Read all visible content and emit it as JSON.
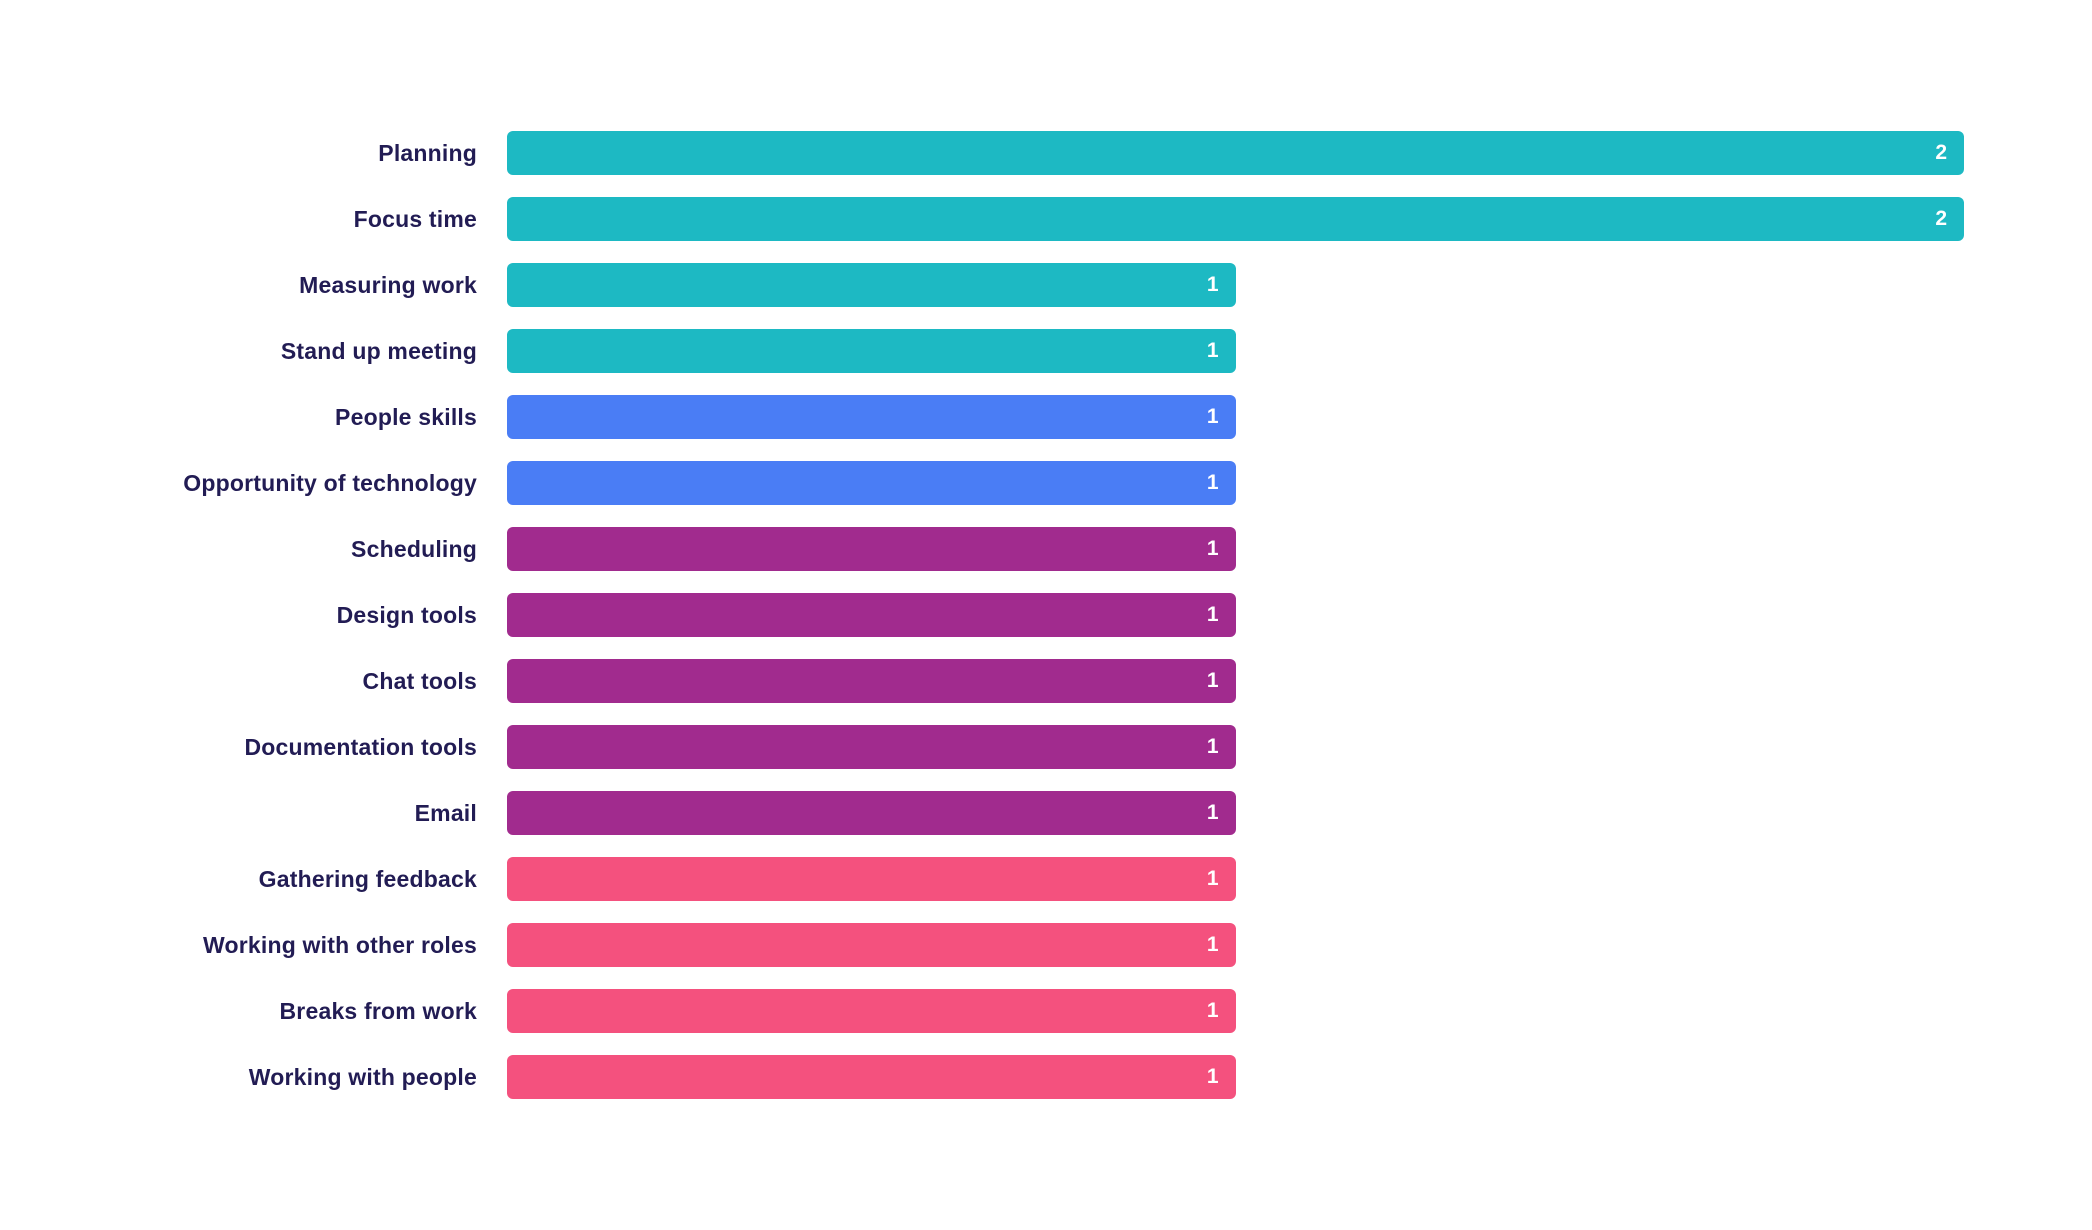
{
  "chart_data": {
    "type": "bar",
    "orientation": "horizontal",
    "title": "",
    "xlabel": "",
    "ylabel": "",
    "xlim": [
      0,
      2
    ],
    "grid": false,
    "axes_shown": false,
    "value_labels_shown": true,
    "categories": [
      "Planning",
      "Focus time",
      "Measuring work",
      "Stand up meeting",
      "People skills",
      "Opportunity of technology",
      "Scheduling",
      "Design tools",
      "Chat tools",
      "Documentation tools",
      "Email",
      "Gathering feedback",
      "Working with other roles",
      "Breaks from work",
      "Working with people"
    ],
    "values": [
      2,
      2,
      1,
      1,
      1,
      1,
      1,
      1,
      1,
      1,
      1,
      1,
      1,
      1,
      1
    ],
    "bar_colors": [
      "#1db9c3",
      "#1db9c3",
      "#1db9c3",
      "#1db9c3",
      "#4a7df5",
      "#4a7df5",
      "#a12b8e",
      "#a12b8e",
      "#a12b8e",
      "#a12b8e",
      "#a12b8e",
      "#f4517e",
      "#f4517e",
      "#f4517e",
      "#f4517e"
    ],
    "color_groups": [
      {
        "color": "#1db9c3",
        "name": "teal"
      },
      {
        "color": "#4a7df5",
        "name": "blue"
      },
      {
        "color": "#a12b8e",
        "name": "purple"
      },
      {
        "color": "#f4517e",
        "name": "pink"
      }
    ]
  },
  "colors": {
    "background": "#ffffff",
    "label_text": "#221c54",
    "value_text": "#ffffff"
  }
}
